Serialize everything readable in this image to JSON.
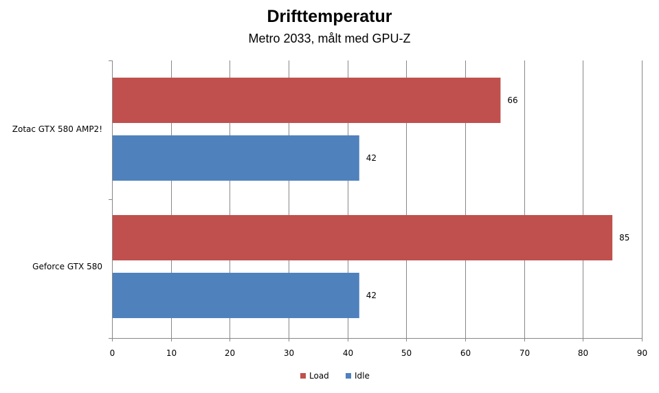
{
  "chart_data": {
    "type": "bar",
    "orientation": "horizontal",
    "title": "Drifttemperatur",
    "subtitle": "Metro 2033, målt med GPU-Z",
    "xlabel": "",
    "ylabel": "",
    "categories": [
      "Zotac GTX 580  AMP2!",
      "Geforce GTX 580"
    ],
    "series": [
      {
        "name": "Load",
        "color": "#c0504d",
        "values": [
          66,
          85
        ]
      },
      {
        "name": "Idle",
        "color": "#4f81bd",
        "values": [
          42,
          42
        ]
      }
    ],
    "xlim": [
      0,
      90
    ],
    "xticks": [
      0,
      10,
      20,
      30,
      40,
      50,
      60,
      70,
      80,
      90
    ],
    "grid": true,
    "data_labels": true,
    "legend_position": "bottom"
  }
}
